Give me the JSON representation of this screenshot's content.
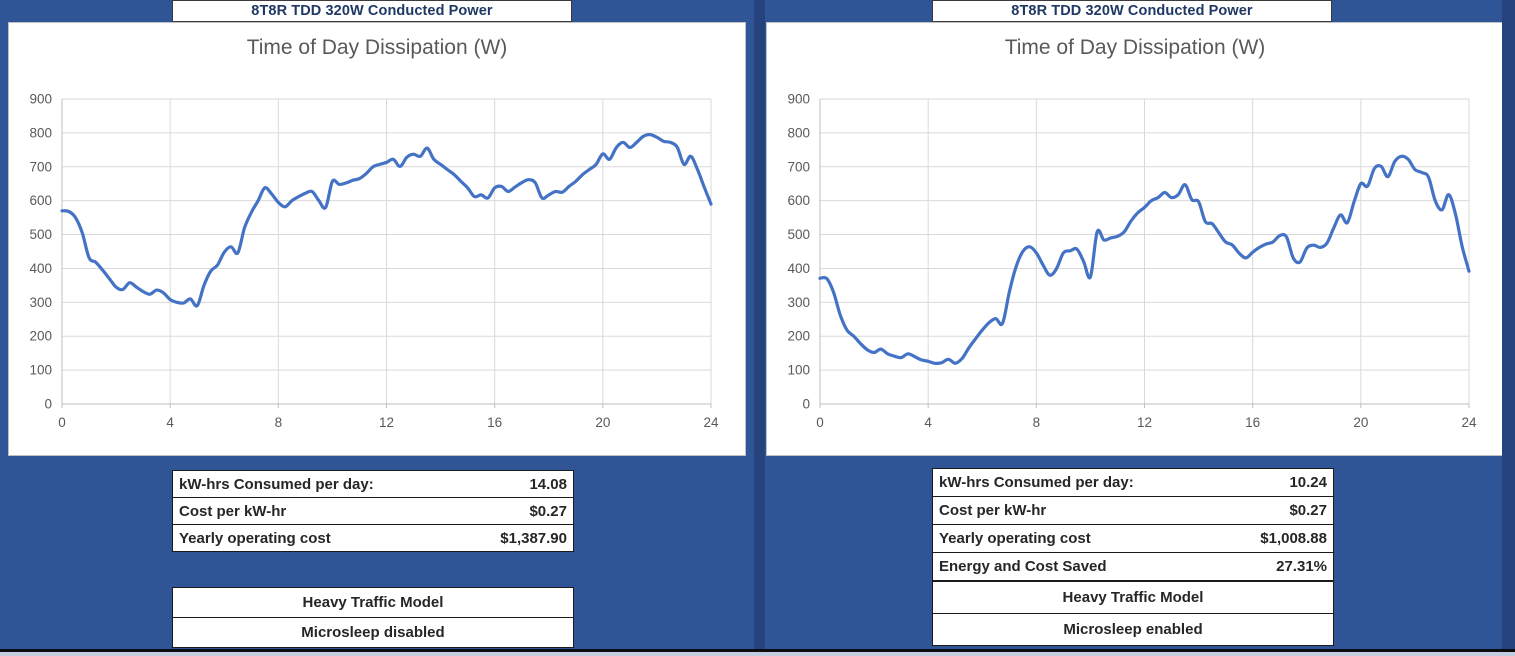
{
  "colors": {
    "background": "#2F5597",
    "divider": "#27437E",
    "line": "#4472C4",
    "grid": "#D9D9D9",
    "axis_line": "#BFBFBF",
    "axis_text": "#595959",
    "chart_title_text": "#595959",
    "header_text": "#1F3864",
    "table_text": "#262626"
  },
  "panels": [
    {
      "header": "8T8R TDD 320W Conducted Power",
      "table": {
        "rows": [
          {
            "label": "kW-hrs Consumed per day:",
            "value": "14.08"
          },
          {
            "label": "Cost per kW-hr",
            "value": "$0.27"
          },
          {
            "label": "Yearly operating cost",
            "value": "$1,387.90"
          }
        ]
      },
      "footer": [
        "Heavy Traffic Model",
        "Microsleep disabled"
      ]
    },
    {
      "header": "8T8R TDD 320W Conducted Power",
      "table": {
        "rows": [
          {
            "label": "kW-hrs Consumed per day:",
            "value": "10.24"
          },
          {
            "label": "Cost per kW-hr",
            "value": "$0.27"
          },
          {
            "label": "Yearly operating cost",
            "value": "$1,008.88"
          },
          {
            "label": "Energy and Cost Saved",
            "value": "27.31%"
          }
        ]
      },
      "footer": [
        "Heavy Traffic Model",
        "Microsleep enabled"
      ]
    }
  ],
  "chart_data": [
    {
      "type": "line",
      "title": "Time of Day Dissipation (W)",
      "xlabel": "",
      "ylabel": "",
      "legend": "none",
      "grid": true,
      "xlim": [
        0,
        24
      ],
      "ylim": [
        0,
        900
      ],
      "xticks": [
        0,
        4,
        8,
        12,
        16,
        20,
        24
      ],
      "yticks": [
        0,
        100,
        200,
        300,
        400,
        500,
        600,
        700,
        800,
        900
      ],
      "x_start": 0,
      "x_step": 0.25,
      "series_name": "Heavy Traffic, Microsleep disabled",
      "values": [
        570,
        568,
        550,
        505,
        432,
        418,
        395,
        370,
        345,
        338,
        358,
        345,
        332,
        324,
        336,
        328,
        308,
        300,
        298,
        310,
        290,
        350,
        392,
        410,
        448,
        464,
        446,
        520,
        565,
        600,
        638,
        620,
        595,
        582,
        600,
        612,
        622,
        627,
        600,
        580,
        657,
        648,
        652,
        660,
        665,
        680,
        700,
        707,
        713,
        722,
        701,
        728,
        737,
        731,
        755,
        722,
        707,
        692,
        677,
        657,
        638,
        612,
        617,
        608,
        638,
        642,
        627,
        640,
        653,
        662,
        653,
        608,
        617,
        627,
        625,
        642,
        657,
        677,
        692,
        707,
        738,
        722,
        757,
        772,
        757,
        772,
        790,
        795,
        787,
        775,
        772,
        758,
        707,
        731,
        692,
        640,
        590
      ]
    },
    {
      "type": "line",
      "title": "Time of Day Dissipation (W)",
      "xlabel": "",
      "ylabel": "",
      "legend": "none",
      "grid": true,
      "xlim": [
        0,
        24
      ],
      "ylim": [
        0,
        900
      ],
      "xticks": [
        0,
        4,
        8,
        12,
        16,
        20,
        24
      ],
      "yticks": [
        0,
        100,
        200,
        300,
        400,
        500,
        600,
        700,
        800,
        900
      ],
      "x_start": 0,
      "x_step": 0.25,
      "series_name": "Heavy Traffic, Microsleep enabled",
      "values": [
        371,
        370,
        330,
        262,
        218,
        200,
        178,
        160,
        152,
        162,
        148,
        141,
        137,
        148,
        140,
        130,
        126,
        120,
        122,
        132,
        120,
        134,
        165,
        192,
        218,
        240,
        252,
        238,
        330,
        405,
        450,
        464,
        446,
        410,
        380,
        400,
        446,
        452,
        457,
        420,
        375,
        508,
        484,
        490,
        495,
        508,
        540,
        564,
        580,
        600,
        609,
        624,
        609,
        618,
        647,
        603,
        597,
        538,
        532,
        505,
        478,
        469,
        445,
        431,
        448,
        462,
        472,
        478,
        497,
        493,
        431,
        419,
        460,
        469,
        462,
        475,
        520,
        558,
        535,
        597,
        650,
        643,
        695,
        701,
        671,
        715,
        731,
        722,
        692,
        683,
        670,
        600,
        573,
        618,
        560,
        464,
        392
      ]
    }
  ]
}
